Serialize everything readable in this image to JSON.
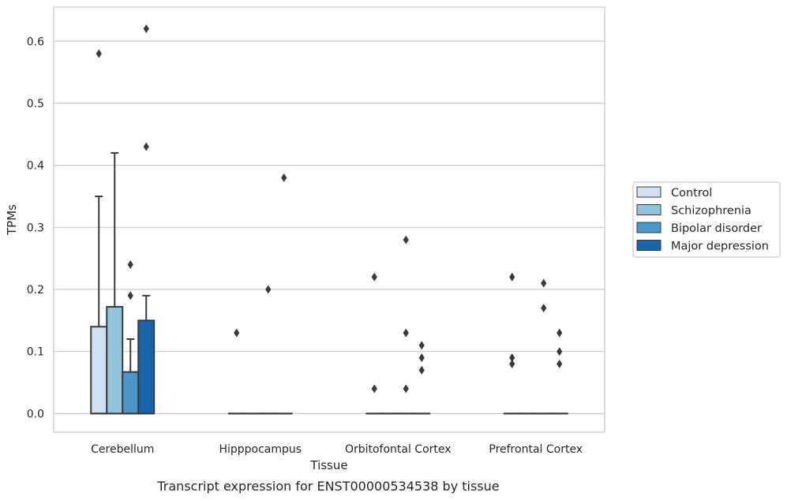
{
  "chart_data": {
    "type": "box",
    "title": "",
    "caption": "Transcript expression for ENST00000534538 by tissue",
    "xlabel": "Tissue",
    "ylabel": "TPMs",
    "ylim": [
      -0.03,
      0.655
    ],
    "yticks": [
      "0.0",
      "0.1",
      "0.2",
      "0.3",
      "0.4",
      "0.5",
      "0.6"
    ],
    "ytick_values": [
      0.0,
      0.1,
      0.2,
      0.3,
      0.4,
      0.5,
      0.6
    ],
    "grid": "horizontal",
    "legend_position": "right",
    "categories": [
      "Cerebellum",
      "Hipppocampus",
      "Orbitofontal Cortex",
      "Prefrontal Cortex"
    ],
    "series": [
      {
        "name": "Control",
        "color": "#cfe1f2",
        "boxes": [
          {
            "q1": 0.0,
            "median": 0.0,
            "q3": 0.14,
            "whisker_low": 0.0,
            "whisker_high": 0.35,
            "outliers": [
              0.58
            ]
          },
          {
            "q1": 0.0,
            "median": 0.0,
            "q3": 0.0,
            "whisker_low": 0.0,
            "whisker_high": 0.0,
            "outliers": [
              0.13
            ]
          },
          {
            "q1": 0.0,
            "median": 0.0,
            "q3": 0.0,
            "whisker_low": 0.0,
            "whisker_high": 0.0,
            "outliers": [
              0.22,
              0.04
            ]
          },
          {
            "q1": 0.0,
            "median": 0.0,
            "q3": 0.0,
            "whisker_low": 0.0,
            "whisker_high": 0.0,
            "outliers": [
              0.22,
              0.09,
              0.08
            ]
          }
        ]
      },
      {
        "name": "Schizophrenia",
        "color": "#93c4de",
        "boxes": [
          {
            "q1": 0.0,
            "median": 0.0,
            "q3": 0.172,
            "whisker_low": 0.0,
            "whisker_high": 0.42,
            "outliers": []
          },
          {
            "q1": 0.0,
            "median": 0.0,
            "q3": 0.0,
            "whisker_low": 0.0,
            "whisker_high": 0.0,
            "outliers": []
          },
          {
            "q1": 0.0,
            "median": 0.0,
            "q3": 0.0,
            "whisker_low": 0.0,
            "whisker_high": 0.0,
            "outliers": []
          },
          {
            "q1": 0.0,
            "median": 0.0,
            "q3": 0.0,
            "whisker_low": 0.0,
            "whisker_high": 0.0,
            "outliers": []
          }
        ]
      },
      {
        "name": "Bipolar disorder",
        "color": "#4a98c9",
        "boxes": [
          {
            "q1": 0.0,
            "median": 0.0,
            "q3": 0.067,
            "whisker_low": 0.0,
            "whisker_high": 0.12,
            "outliers": [
              0.24,
              0.19
            ]
          },
          {
            "q1": 0.0,
            "median": 0.0,
            "q3": 0.0,
            "whisker_low": 0.0,
            "whisker_high": 0.0,
            "outliers": [
              0.2
            ]
          },
          {
            "q1": 0.0,
            "median": 0.0,
            "q3": 0.0,
            "whisker_low": 0.0,
            "whisker_high": 0.0,
            "outliers": [
              0.28,
              0.13,
              0.04
            ]
          },
          {
            "q1": 0.0,
            "median": 0.0,
            "q3": 0.0,
            "whisker_low": 0.0,
            "whisker_high": 0.0,
            "outliers": [
              0.21,
              0.17
            ]
          }
        ]
      },
      {
        "name": "Major depression",
        "color": "#1764ab",
        "boxes": [
          {
            "q1": 0.0,
            "median": 0.0,
            "q3": 0.15,
            "whisker_low": 0.0,
            "whisker_high": 0.19,
            "outliers": [
              0.62,
              0.43
            ]
          },
          {
            "q1": 0.0,
            "median": 0.0,
            "q3": 0.0,
            "whisker_low": 0.0,
            "whisker_high": 0.0,
            "outliers": [
              0.38
            ]
          },
          {
            "q1": 0.0,
            "median": 0.0,
            "q3": 0.0,
            "whisker_low": 0.0,
            "whisker_high": 0.0,
            "outliers": [
              0.11,
              0.09,
              0.07
            ]
          },
          {
            "q1": 0.0,
            "median": 0.0,
            "q3": 0.0,
            "whisker_low": 0.0,
            "whisker_high": 0.0,
            "outliers": [
              0.13,
              0.1,
              0.08
            ]
          }
        ]
      }
    ]
  },
  "colors": {
    "grid": "#cccccc",
    "frame": "#cccccc",
    "line": "#3a3a3a",
    "outlier": "#3a3a3a"
  }
}
